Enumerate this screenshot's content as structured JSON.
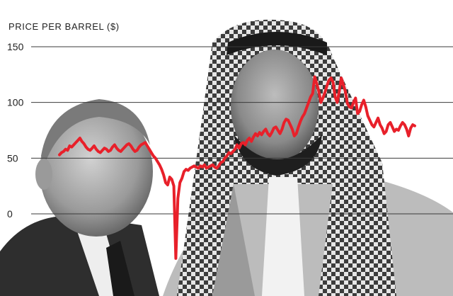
{
  "chart_data": {
    "type": "line",
    "title": "",
    "xlabel": "",
    "ylabel": "PRICE PER BARREL ($)",
    "ylim": [
      0,
      150
    ],
    "yticks": [
      {
        "value": 150,
        "label": "150"
      },
      {
        "value": 100,
        "label": "100"
      },
      {
        "value": 50,
        "label": "50"
      },
      {
        "value": 0,
        "label": "0"
      }
    ],
    "grid": true,
    "series": [
      {
        "color": "#e8202a",
        "values": [
          53,
          55,
          56,
          58,
          57,
          61,
          60,
          62,
          64,
          66,
          68,
          65,
          63,
          60,
          58,
          57,
          59,
          61,
          58,
          56,
          55,
          57,
          59,
          58,
          56,
          57,
          60,
          62,
          59,
          57,
          56,
          58,
          60,
          62,
          63,
          61,
          58,
          56,
          57,
          60,
          62,
          63,
          64,
          61,
          58,
          55,
          52,
          50,
          47,
          44,
          40,
          35,
          28,
          26,
          33,
          31,
          25,
          -40,
          14,
          28,
          32,
          38,
          40,
          39,
          41,
          42,
          43,
          42,
          41,
          43,
          42,
          44,
          41,
          42,
          43,
          44,
          42,
          41,
          43,
          46,
          47,
          50,
          52,
          55,
          54,
          56,
          58,
          62,
          59,
          63,
          64,
          62,
          66,
          68,
          65,
          69,
          72,
          70,
          73,
          71,
          74,
          76,
          72,
          70,
          73,
          77,
          78,
          75,
          72,
          76,
          82,
          85,
          84,
          80,
          76,
          70,
          72,
          78,
          83,
          87,
          90,
          95,
          100,
          105,
          108,
          123,
          117,
          110,
          100,
          104,
          109,
          115,
          120,
          122,
          118,
          105,
          100,
          110,
          122,
          116,
          110,
          99,
          96,
          95,
          100,
          104,
          90,
          92,
          98,
          102,
          96,
          88,
          84,
          80,
          78,
          82,
          86,
          80,
          77,
          72,
          74,
          80,
          82,
          78,
          74,
          76,
          75,
          79,
          82,
          80,
          76,
          70,
          77,
          80,
          79
        ]
      }
    ]
  },
  "colors": {
    "background": "#ffffff",
    "grid": "#3a3a3a",
    "text": "#222222",
    "line": "#e8202a",
    "photo_gray": "#8a8a8a"
  }
}
